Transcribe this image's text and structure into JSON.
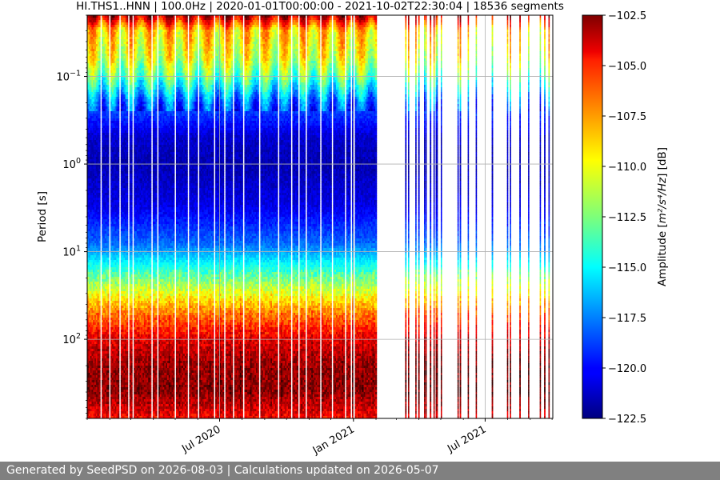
{
  "footer": {
    "text": "Generated by SeedPSD on 2026-08-03 | Calculations updated on 2026-05-07"
  },
  "chart_data": {
    "type": "heatmap",
    "title": "HI.THS1..HNN | 100.0Hz | 2020-01-01T00:00:00 - 2021-10-02T22:30:04 | 18536 segments",
    "xlabel": "",
    "ylabel": "Period [s]",
    "y_scale": "log",
    "y_inverted": true,
    "ylim": [
      0.02,
      800
    ],
    "yticks": [
      {
        "value": 0.1,
        "base": "10",
        "exp": "−1"
      },
      {
        "value": 1,
        "base": "10",
        "exp": "0"
      },
      {
        "value": 10,
        "base": "10",
        "exp": "1"
      },
      {
        "value": 100,
        "base": "10",
        "exp": "2"
      }
    ],
    "xlim": [
      "2020-01-01",
      "2021-10-02"
    ],
    "xticks": [
      {
        "date": "2020-07-01",
        "label": "Jul 2020"
      },
      {
        "date": "2021-01-01",
        "label": "Jan 2021"
      },
      {
        "date": "2021-07-01",
        "label": "Jul 2021"
      }
    ],
    "grid": true,
    "colorbar": {
      "label_main": "Amplitude [",
      "label_unit": "m²/s⁴/Hz",
      "label_tail": "] [dB]",
      "vmin": -122.5,
      "vmax": -102.5,
      "ticks": [
        -102.5,
        -105.0,
        -107.5,
        -110.0,
        -112.5,
        -115.0,
        -117.5,
        -120.0,
        -122.5
      ],
      "tick_labels": [
        "−102.5",
        "−105.0",
        "−107.5",
        "−110.0",
        "−112.5",
        "−115.0",
        "−117.5",
        "−120.0",
        "−122.5"
      ],
      "colormap": "jet"
    },
    "data_coverage": {
      "continuous_until": "2021-01-31",
      "sparse_segments_after": [
        "2021-03-13",
        "2021-03-17",
        "2021-03-27",
        "2021-03-31",
        "2021-04-08",
        "2021-04-10",
        "2021-04-16",
        "2021-04-21",
        "2021-04-24",
        "2021-04-25",
        "2021-05-01",
        "2021-05-24",
        "2021-05-27",
        "2021-06-07",
        "2021-06-18",
        "2021-07-10",
        "2021-07-31",
        "2021-08-04",
        "2021-08-17",
        "2021-08-29",
        "2021-09-14",
        "2021-09-20",
        "2021-09-26"
      ]
    },
    "amplitude_profile": [
      {
        "period": 0.02,
        "db": -103.5
      },
      {
        "period": 0.03,
        "db": -109.0
      },
      {
        "period": 0.06,
        "db": -110.5
      },
      {
        "period": 0.1,
        "db": -113.0
      },
      {
        "period": 0.2,
        "db": -118.0
      },
      {
        "period": 0.5,
        "db": -121.0
      },
      {
        "period": 1,
        "db": -121.5
      },
      {
        "period": 3,
        "db": -120.5
      },
      {
        "period": 8,
        "db": -118.0
      },
      {
        "period": 15,
        "db": -114.5
      },
      {
        "period": 30,
        "db": -110.5
      },
      {
        "period": 50,
        "db": -107.5
      },
      {
        "period": 100,
        "db": -104.5
      },
      {
        "period": 200,
        "db": -103.0
      },
      {
        "period": 400,
        "db": -102.8
      },
      {
        "period": 800,
        "db": -105.0
      }
    ]
  }
}
